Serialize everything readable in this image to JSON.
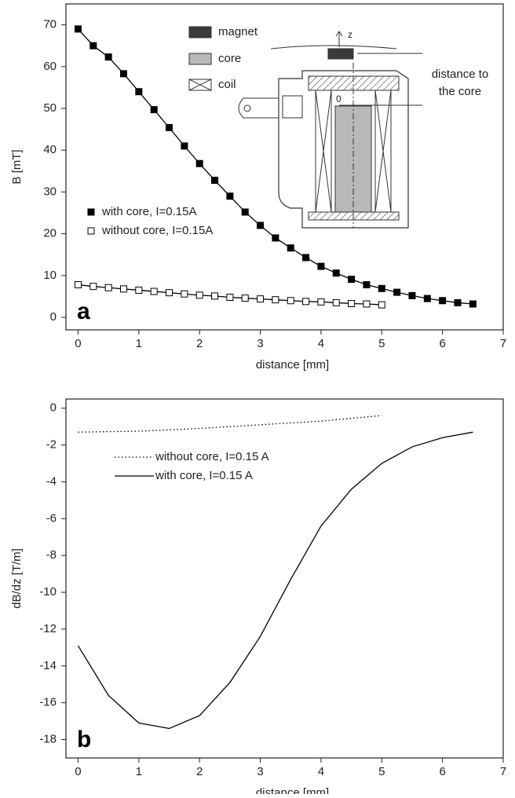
{
  "chart_data": [
    {
      "type": "line",
      "panel_label": "a",
      "x_label": "distance [mm]",
      "y_label": "B [mT]",
      "xlim": [
        -0.2,
        7
      ],
      "ylim": [
        -3,
        75
      ],
      "xticks": [
        0,
        1,
        2,
        3,
        4,
        5,
        6,
        7
      ],
      "yticks": [
        0,
        10,
        20,
        30,
        40,
        50,
        60,
        70
      ],
      "legend": "lower left",
      "series": [
        {
          "name": "with core, I=0.15A",
          "color": "#000000",
          "marker": "filled-square",
          "line": "solid",
          "x": [
            0,
            0.25,
            0.5,
            0.75,
            1,
            1.25,
            1.5,
            1.75,
            2,
            2.25,
            2.5,
            2.75,
            3,
            3.25,
            3.5,
            3.75,
            4,
            4.25,
            4.5,
            4.75,
            5,
            5.25,
            5.5,
            5.75,
            6,
            6.25,
            6.5
          ],
          "values": [
            69,
            65,
            62.3,
            58.3,
            54,
            49.7,
            45.4,
            41,
            36.8,
            32.8,
            29,
            25.2,
            22,
            19,
            16.6,
            14.3,
            12.2,
            10.6,
            9.1,
            7.8,
            6.9,
            6.0,
            5.2,
            4.5,
            4.0,
            3.5,
            3.2
          ]
        },
        {
          "name": "without core, I=0.15A",
          "color": "#000000",
          "marker": "open-square",
          "line": "solid",
          "x": [
            0,
            0.25,
            0.5,
            0.75,
            1,
            1.25,
            1.5,
            1.75,
            2,
            2.25,
            2.5,
            2.75,
            3,
            3.25,
            3.5,
            3.75,
            4,
            4.25,
            4.5,
            4.75,
            5
          ],
          "values": [
            7.8,
            7.4,
            7.1,
            6.8,
            6.5,
            6.2,
            5.9,
            5.6,
            5.3,
            5.1,
            4.8,
            4.6,
            4.4,
            4.2,
            4.0,
            3.8,
            3.7,
            3.5,
            3.3,
            3.2,
            3.0
          ]
        }
      ],
      "annotations": {
        "magnet": "magnet",
        "core": "core",
        "coil": "coil",
        "distance_line1": "distance to",
        "distance_line2": "the core",
        "axis_z": "z",
        "origin": "0"
      }
    },
    {
      "type": "line",
      "panel_label": "b",
      "x_label": "distance [mm]",
      "y_label": "dB/dz [T/m]",
      "xlim": [
        -0.2,
        7
      ],
      "ylim": [
        -19,
        0.5
      ],
      "xticks": [
        0,
        1,
        2,
        3,
        4,
        5,
        6,
        7
      ],
      "yticks": [
        0,
        -2,
        -4,
        -6,
        -8,
        -10,
        -12,
        -14,
        -16,
        -18
      ],
      "legend": "upper left",
      "series": [
        {
          "name": "without core, I=0.15 A",
          "color": "#000000",
          "marker": "none",
          "line": "dotted",
          "x": [
            0,
            1,
            2,
            3,
            4,
            5
          ],
          "values": [
            -1.3,
            -1.25,
            -1.1,
            -0.9,
            -0.7,
            -0.4
          ]
        },
        {
          "name": "with core, I=0.15 A",
          "color": "#000000",
          "marker": "none",
          "line": "solid",
          "x": [
            0,
            0.5,
            1,
            1.5,
            2,
            2.5,
            3,
            3.5,
            4,
            4.5,
            5,
            5.5,
            6,
            6.5
          ],
          "values": [
            -12.9,
            -15.6,
            -17.1,
            -17.4,
            -16.7,
            -14.9,
            -12.4,
            -9.3,
            -6.4,
            -4.4,
            -3.0,
            -2.1,
            -1.6,
            -1.3
          ]
        }
      ]
    }
  ]
}
